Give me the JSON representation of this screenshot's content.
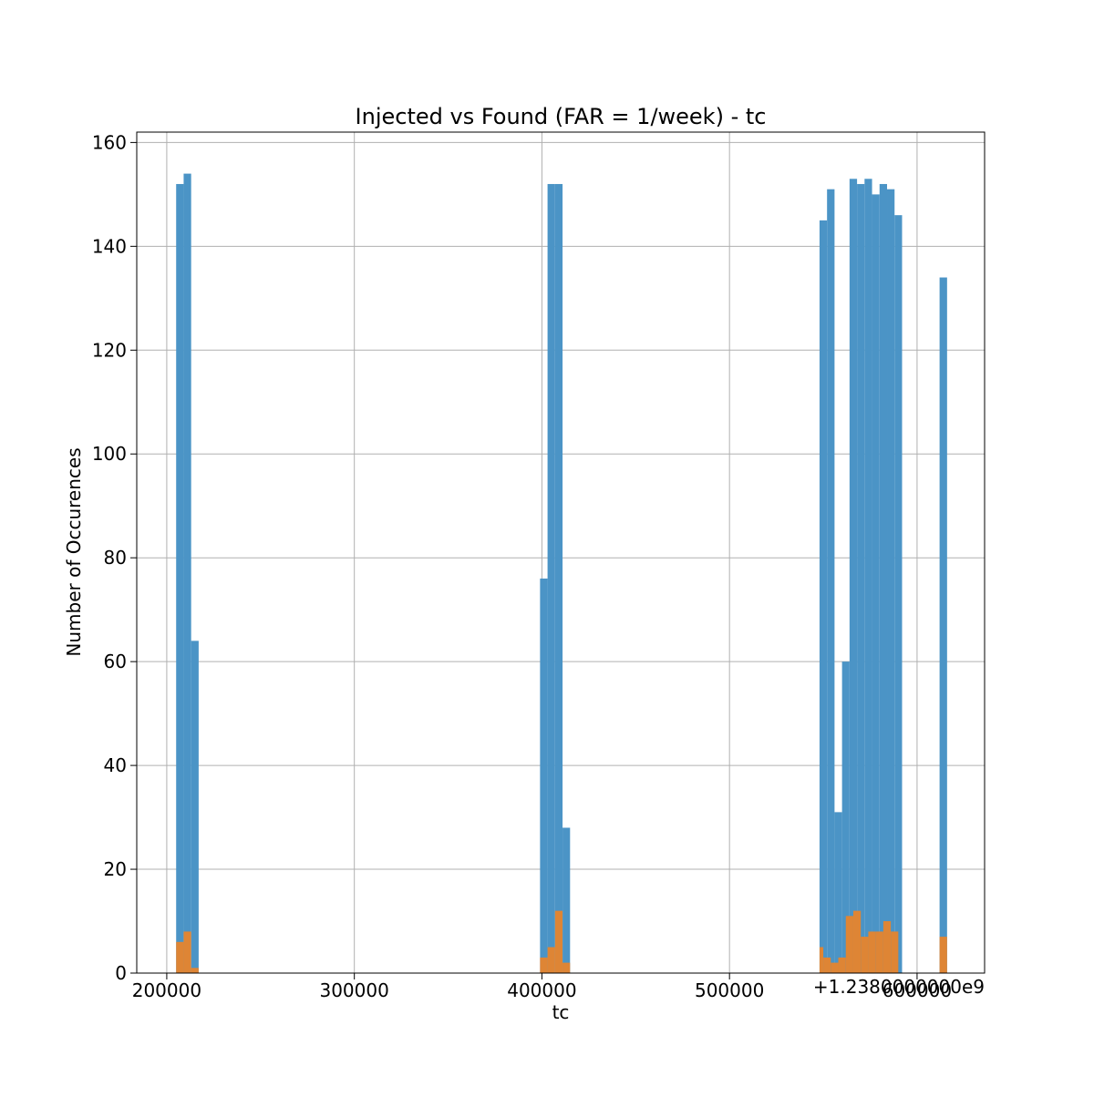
{
  "chart_data": {
    "type": "bar",
    "title": "Injected vs Found (FAR = 1/week) - tc",
    "xlabel": "tc",
    "ylabel": "Number of Occurences",
    "x_offset_label": "+1.2380000000e9",
    "xlim": [
      184000,
      636000
    ],
    "ylim": [
      0,
      162
    ],
    "grid": true,
    "x_ticks": [
      200000,
      300000,
      400000,
      500000,
      600000
    ],
    "x_tick_labels": [
      "200000",
      "300000",
      "400000",
      "500000",
      "600000"
    ],
    "y_ticks": [
      0,
      20,
      40,
      60,
      80,
      100,
      120,
      140,
      160
    ],
    "y_tick_labels": [
      "0",
      "20",
      "40",
      "60",
      "80",
      "100",
      "120",
      "140",
      "160"
    ],
    "series": [
      {
        "color": "#4b94c6",
        "bars": [
          {
            "x0": 205000,
            "x1": 209000,
            "value": 152
          },
          {
            "x0": 209000,
            "x1": 213000,
            "value": 154
          },
          {
            "x0": 213000,
            "x1": 217000,
            "value": 64
          },
          {
            "x0": 399000,
            "x1": 403000,
            "value": 76
          },
          {
            "x0": 403000,
            "x1": 407000,
            "value": 152
          },
          {
            "x0": 407000,
            "x1": 411000,
            "value": 152
          },
          {
            "x0": 411000,
            "x1": 415000,
            "value": 28
          },
          {
            "x0": 548000,
            "x1": 552000,
            "value": 145
          },
          {
            "x0": 552000,
            "x1": 556000,
            "value": 151
          },
          {
            "x0": 556000,
            "x1": 560000,
            "value": 31
          },
          {
            "x0": 560000,
            "x1": 564000,
            "value": 60
          },
          {
            "x0": 564000,
            "x1": 568000,
            "value": 153
          },
          {
            "x0": 568000,
            "x1": 572000,
            "value": 152
          },
          {
            "x0": 572000,
            "x1": 576000,
            "value": 153
          },
          {
            "x0": 576000,
            "x1": 580000,
            "value": 150
          },
          {
            "x0": 580000,
            "x1": 584000,
            "value": 152
          },
          {
            "x0": 584000,
            "x1": 588000,
            "value": 151
          },
          {
            "x0": 588000,
            "x1": 592000,
            "value": 146
          },
          {
            "x0": 612000,
            "x1": 616000,
            "value": 134
          }
        ]
      },
      {
        "color": "#de8535",
        "bars": [
          {
            "x0": 205000,
            "x1": 209000,
            "value": 6
          },
          {
            "x0": 209000,
            "x1": 213000,
            "value": 8
          },
          {
            "x0": 213000,
            "x1": 217000,
            "value": 1
          },
          {
            "x0": 399000,
            "x1": 403000,
            "value": 3
          },
          {
            "x0": 403000,
            "x1": 407000,
            "value": 5
          },
          {
            "x0": 407000,
            "x1": 411000,
            "value": 12
          },
          {
            "x0": 411000,
            "x1": 415000,
            "value": 2
          },
          {
            "x0": 548000,
            "x1": 550000,
            "value": 5
          },
          {
            "x0": 550000,
            "x1": 554000,
            "value": 3
          },
          {
            "x0": 554000,
            "x1": 558000,
            "value": 2
          },
          {
            "x0": 558000,
            "x1": 562000,
            "value": 3
          },
          {
            "x0": 562000,
            "x1": 566000,
            "value": 11
          },
          {
            "x0": 566000,
            "x1": 570000,
            "value": 12
          },
          {
            "x0": 570000,
            "x1": 574000,
            "value": 7
          },
          {
            "x0": 574000,
            "x1": 578000,
            "value": 8
          },
          {
            "x0": 578000,
            "x1": 582000,
            "value": 8
          },
          {
            "x0": 582000,
            "x1": 586000,
            "value": 10
          },
          {
            "x0": 586000,
            "x1": 590000,
            "value": 8
          },
          {
            "x0": 612000,
            "x1": 616000,
            "value": 7
          }
        ]
      }
    ]
  }
}
